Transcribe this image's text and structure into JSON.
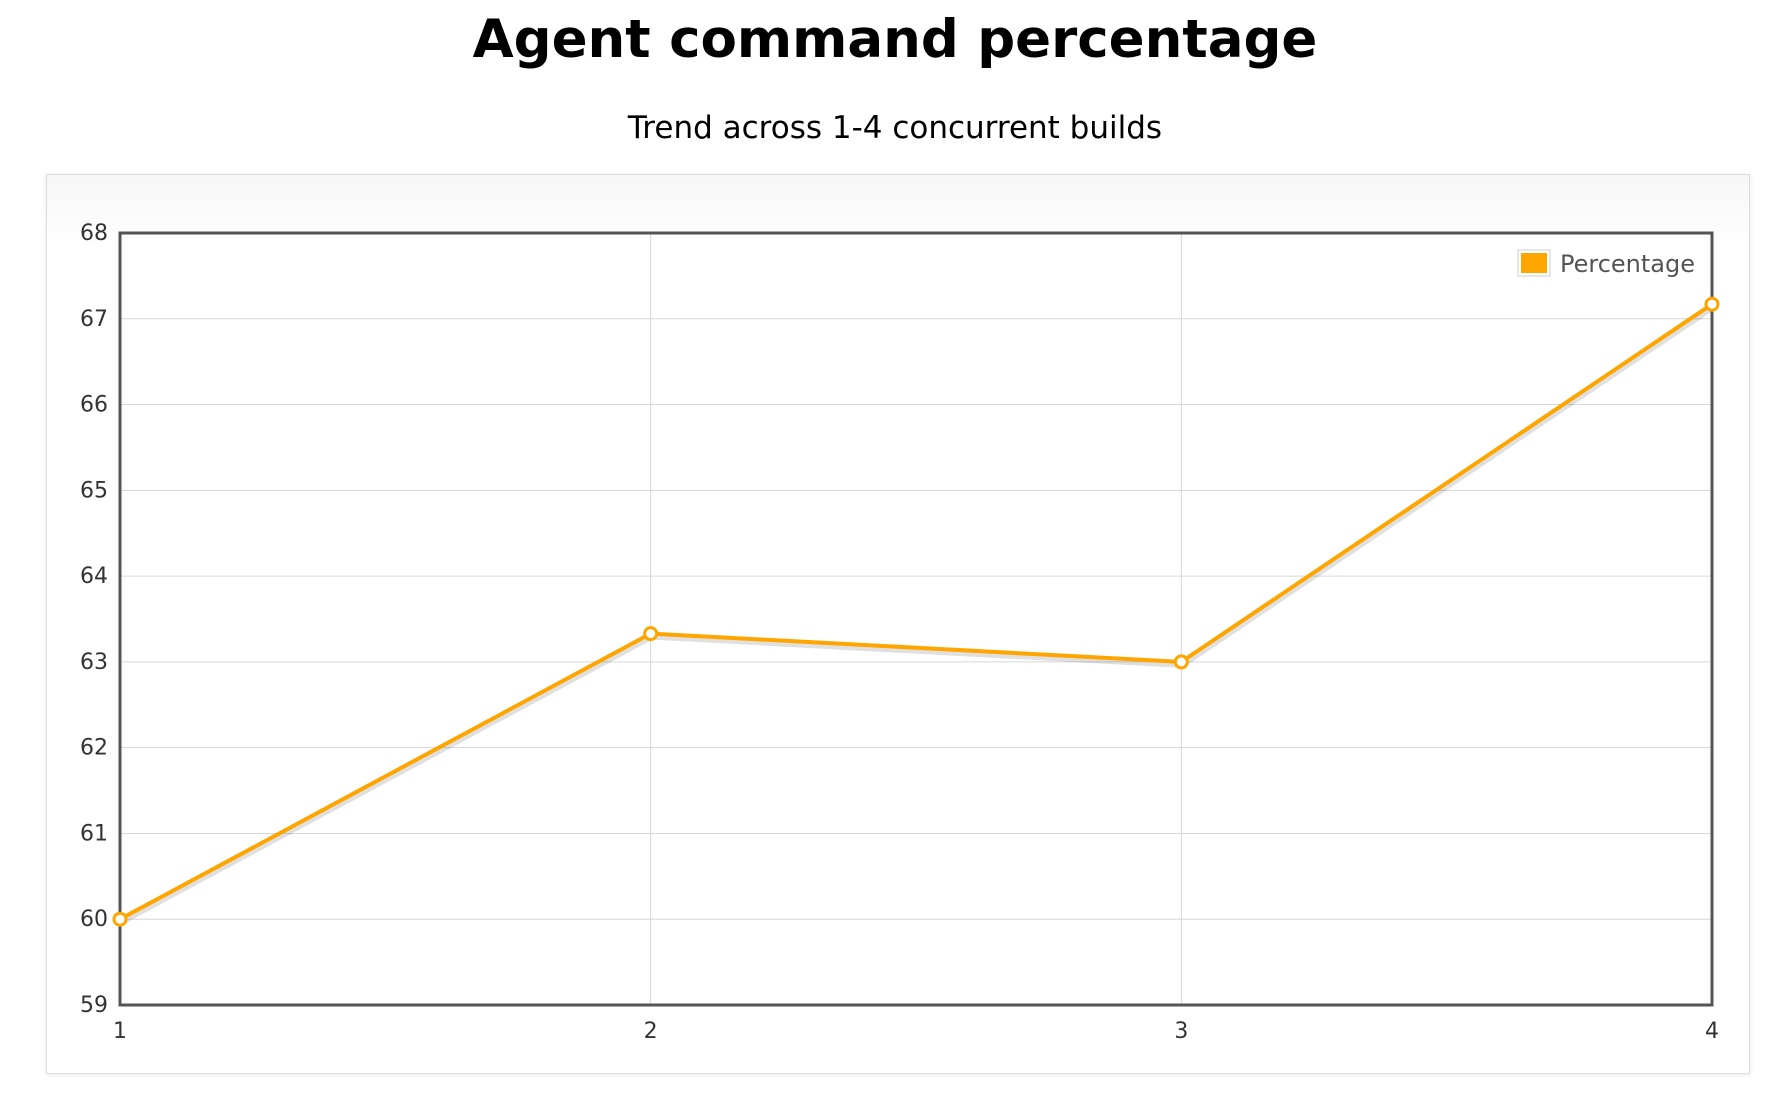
{
  "title": "Agent command percentage",
  "subtitle": "Trend across 1-4 concurrent builds",
  "chart_data": {
    "type": "line",
    "x": [
      1,
      2,
      3,
      4
    ],
    "x_tick_labels": [
      "1",
      "2",
      "3",
      "4"
    ],
    "y_tick_labels": [
      "59",
      "60",
      "61",
      "62",
      "63",
      "64",
      "65",
      "66",
      "67",
      "68"
    ],
    "series": [
      {
        "name": "Percentage",
        "values": [
          60.0,
          63.33,
          63.0,
          67.17
        ],
        "color": "#ffa500"
      }
    ],
    "xlim": [
      1,
      4
    ],
    "ylim": [
      59,
      68
    ],
    "grid": true,
    "legend_position": "top-right"
  }
}
